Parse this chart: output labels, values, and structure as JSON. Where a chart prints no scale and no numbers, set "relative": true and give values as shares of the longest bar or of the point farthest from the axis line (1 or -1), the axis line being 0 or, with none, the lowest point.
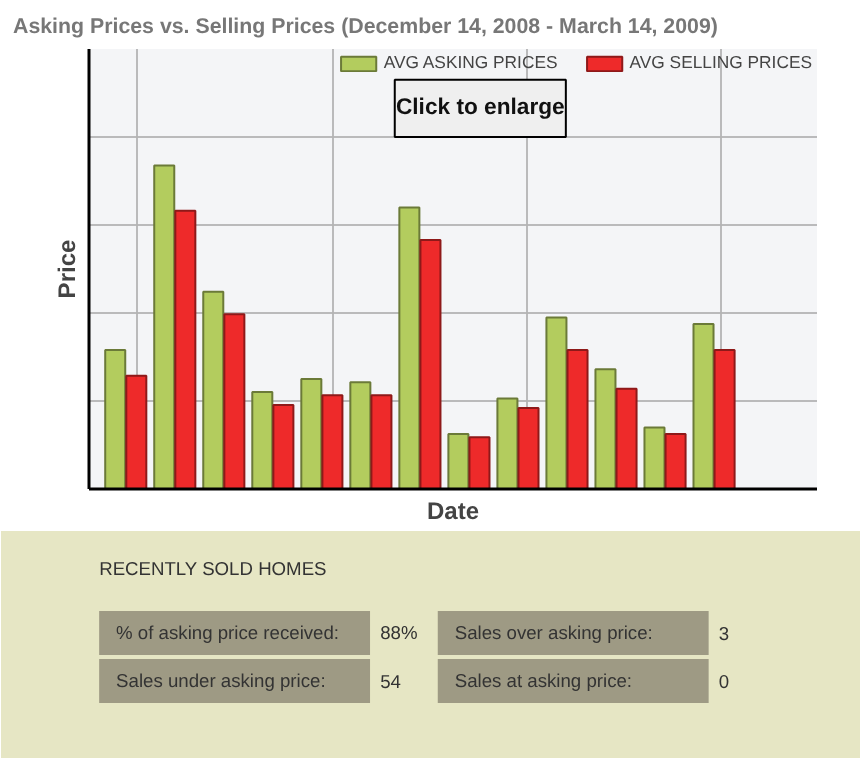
{
  "chart_data": {
    "type": "bar",
    "title": "Asking Prices vs. Selling Prices (December 14, 2008 - March 14, 2009)",
    "xlabel": "Date",
    "ylabel": "Price",
    "relative": true,
    "grid": true,
    "legend": "top right",
    "categories": [
      null,
      null,
      null,
      null,
      null,
      null,
      null,
      null,
      null,
      null,
      null,
      null,
      null
    ],
    "series": [
      {
        "name": "AVG ASKING PRICES",
        "color": "#b3cc5e",
        "values": [
          0.43,
          1,
          0.61,
          0.3,
          0.34,
          0.33,
          0.87,
          0.17,
          0.28,
          0.53,
          0.37,
          0.19,
          0.51
        ]
      },
      {
        "name": "AVG SELLING PRICES",
        "color": "#ee2a2a",
        "values": [
          0.35,
          0.86,
          0.54,
          0.26,
          0.29,
          0.29,
          0.77,
          0.16,
          0.25,
          0.43,
          0.31,
          0.17,
          0.43
        ]
      }
    ],
    "annotations": [
      "Click to enlarge",
      "RECENTLY SOLD HOMES",
      "% of asking price received:",
      "88%",
      "Sales over asking price:",
      "3",
      "Sales under asking price:",
      "54",
      "Sales at asking price:",
      "0"
    ]
  }
}
